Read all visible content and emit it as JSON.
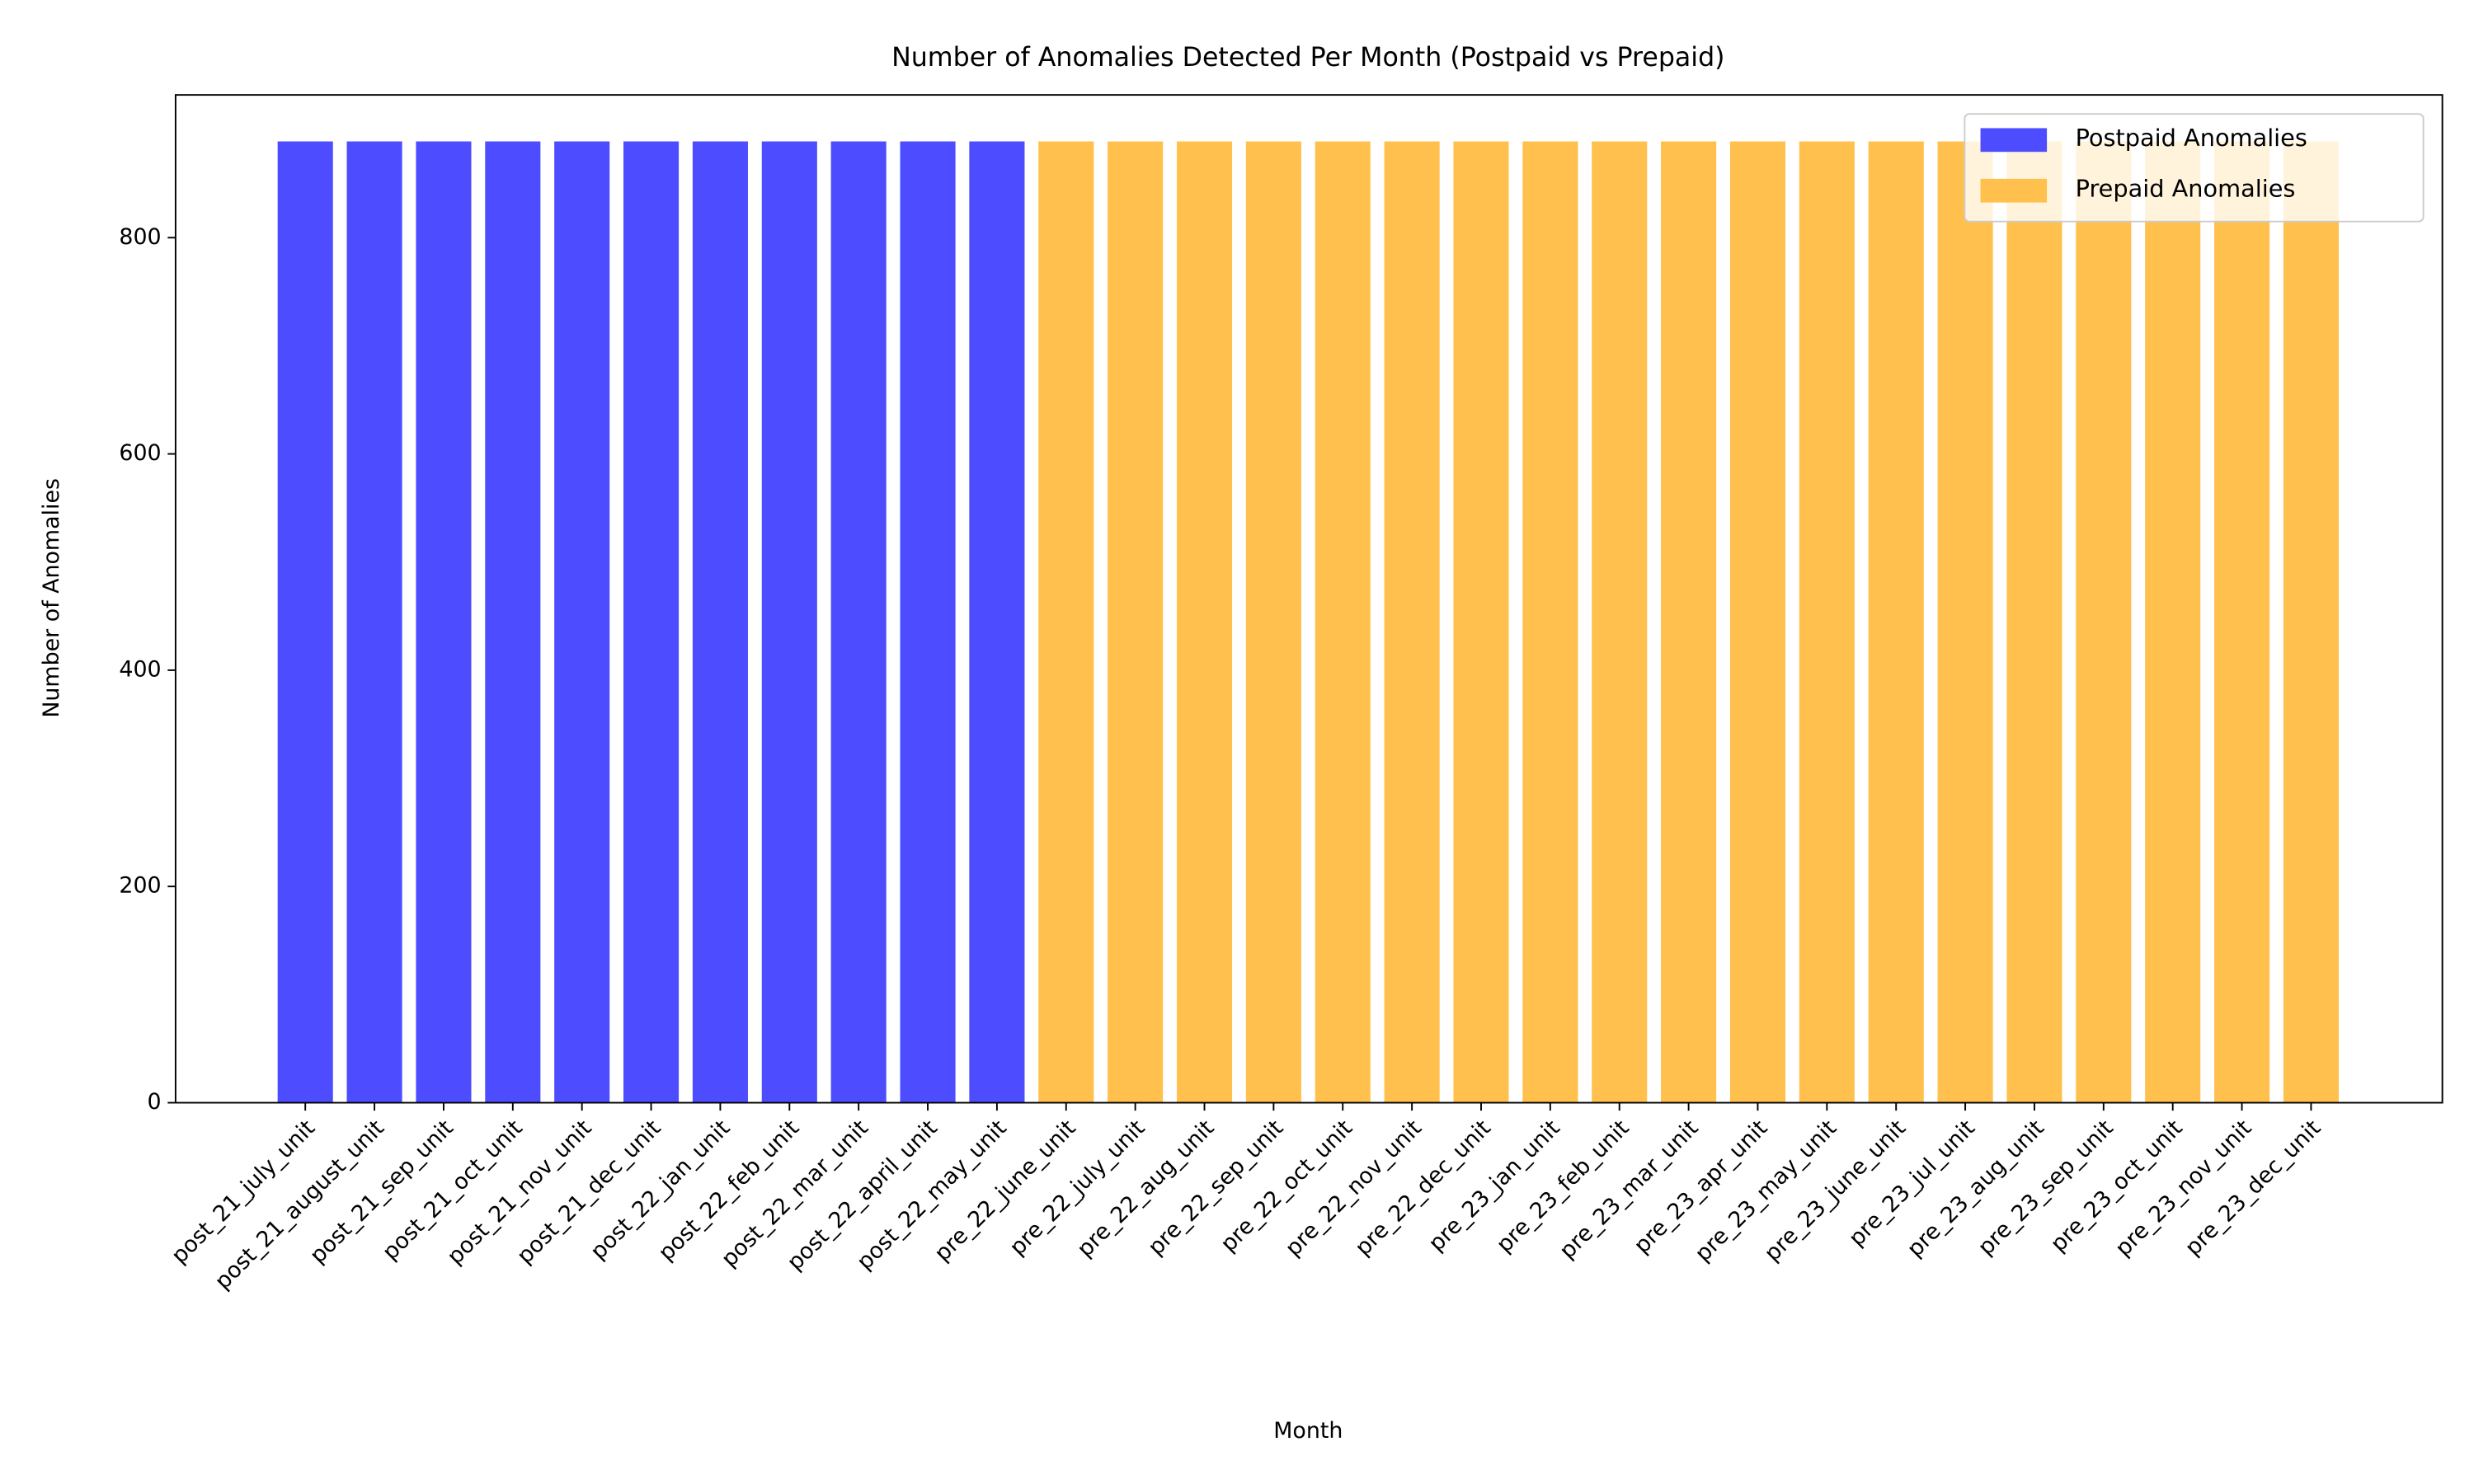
{
  "chart_data": {
    "type": "bar",
    "title": "Number of Anomalies Detected Per Month (Postpaid vs Prepaid)",
    "x_label": "Month",
    "y_label": "Number of Anomalies",
    "categories": [
      "post_21_july_unit",
      "post_21_august_unit",
      "post_21_sep_unit",
      "post_21_oct_unit",
      "post_21_nov_unit",
      "post_21_dec_unit",
      "post_22_jan_unit",
      "post_22_feb_unit",
      "post_22_mar_unit",
      "post_22_april_unit",
      "post_22_may_unit",
      "pre_22_june_unit",
      "pre_22_july_unit",
      "pre_22_aug_unit",
      "pre_22_sep_unit",
      "pre_22_oct_unit",
      "pre_22_nov_unit",
      "pre_22_dec_unit",
      "pre_23_jan_unit",
      "pre_23_feb_unit",
      "pre_23_mar_unit",
      "pre_23_apr_unit",
      "pre_23_may_unit",
      "pre_23_june_unit",
      "pre_23_jul_unit",
      "pre_23_aug_unit",
      "pre_23_sep_unit",
      "pre_23_oct_unit",
      "pre_23_nov_unit",
      "pre_23_dec_unit"
    ],
    "series": [
      {
        "name": "Postpaid Anomalies",
        "color": "#4d4dff",
        "values": [
          889,
          889,
          889,
          889,
          889,
          889,
          889,
          889,
          889,
          889,
          889,
          null,
          null,
          null,
          null,
          null,
          null,
          null,
          null,
          null,
          null,
          null,
          null,
          null,
          null,
          null,
          null,
          null,
          null,
          null
        ]
      },
      {
        "name": "Prepaid Anomalies",
        "color": "#ffc04d",
        "values": [
          null,
          null,
          null,
          null,
          null,
          null,
          null,
          null,
          null,
          null,
          null,
          889,
          889,
          889,
          889,
          889,
          889,
          889,
          889,
          889,
          889,
          889,
          889,
          889,
          889,
          889,
          889,
          889,
          889,
          889
        ]
      }
    ],
    "ylim": [
      0,
      932
    ],
    "yticks": [
      0,
      200,
      400,
      600,
      800
    ],
    "grid": false,
    "legend": "upper right"
  }
}
